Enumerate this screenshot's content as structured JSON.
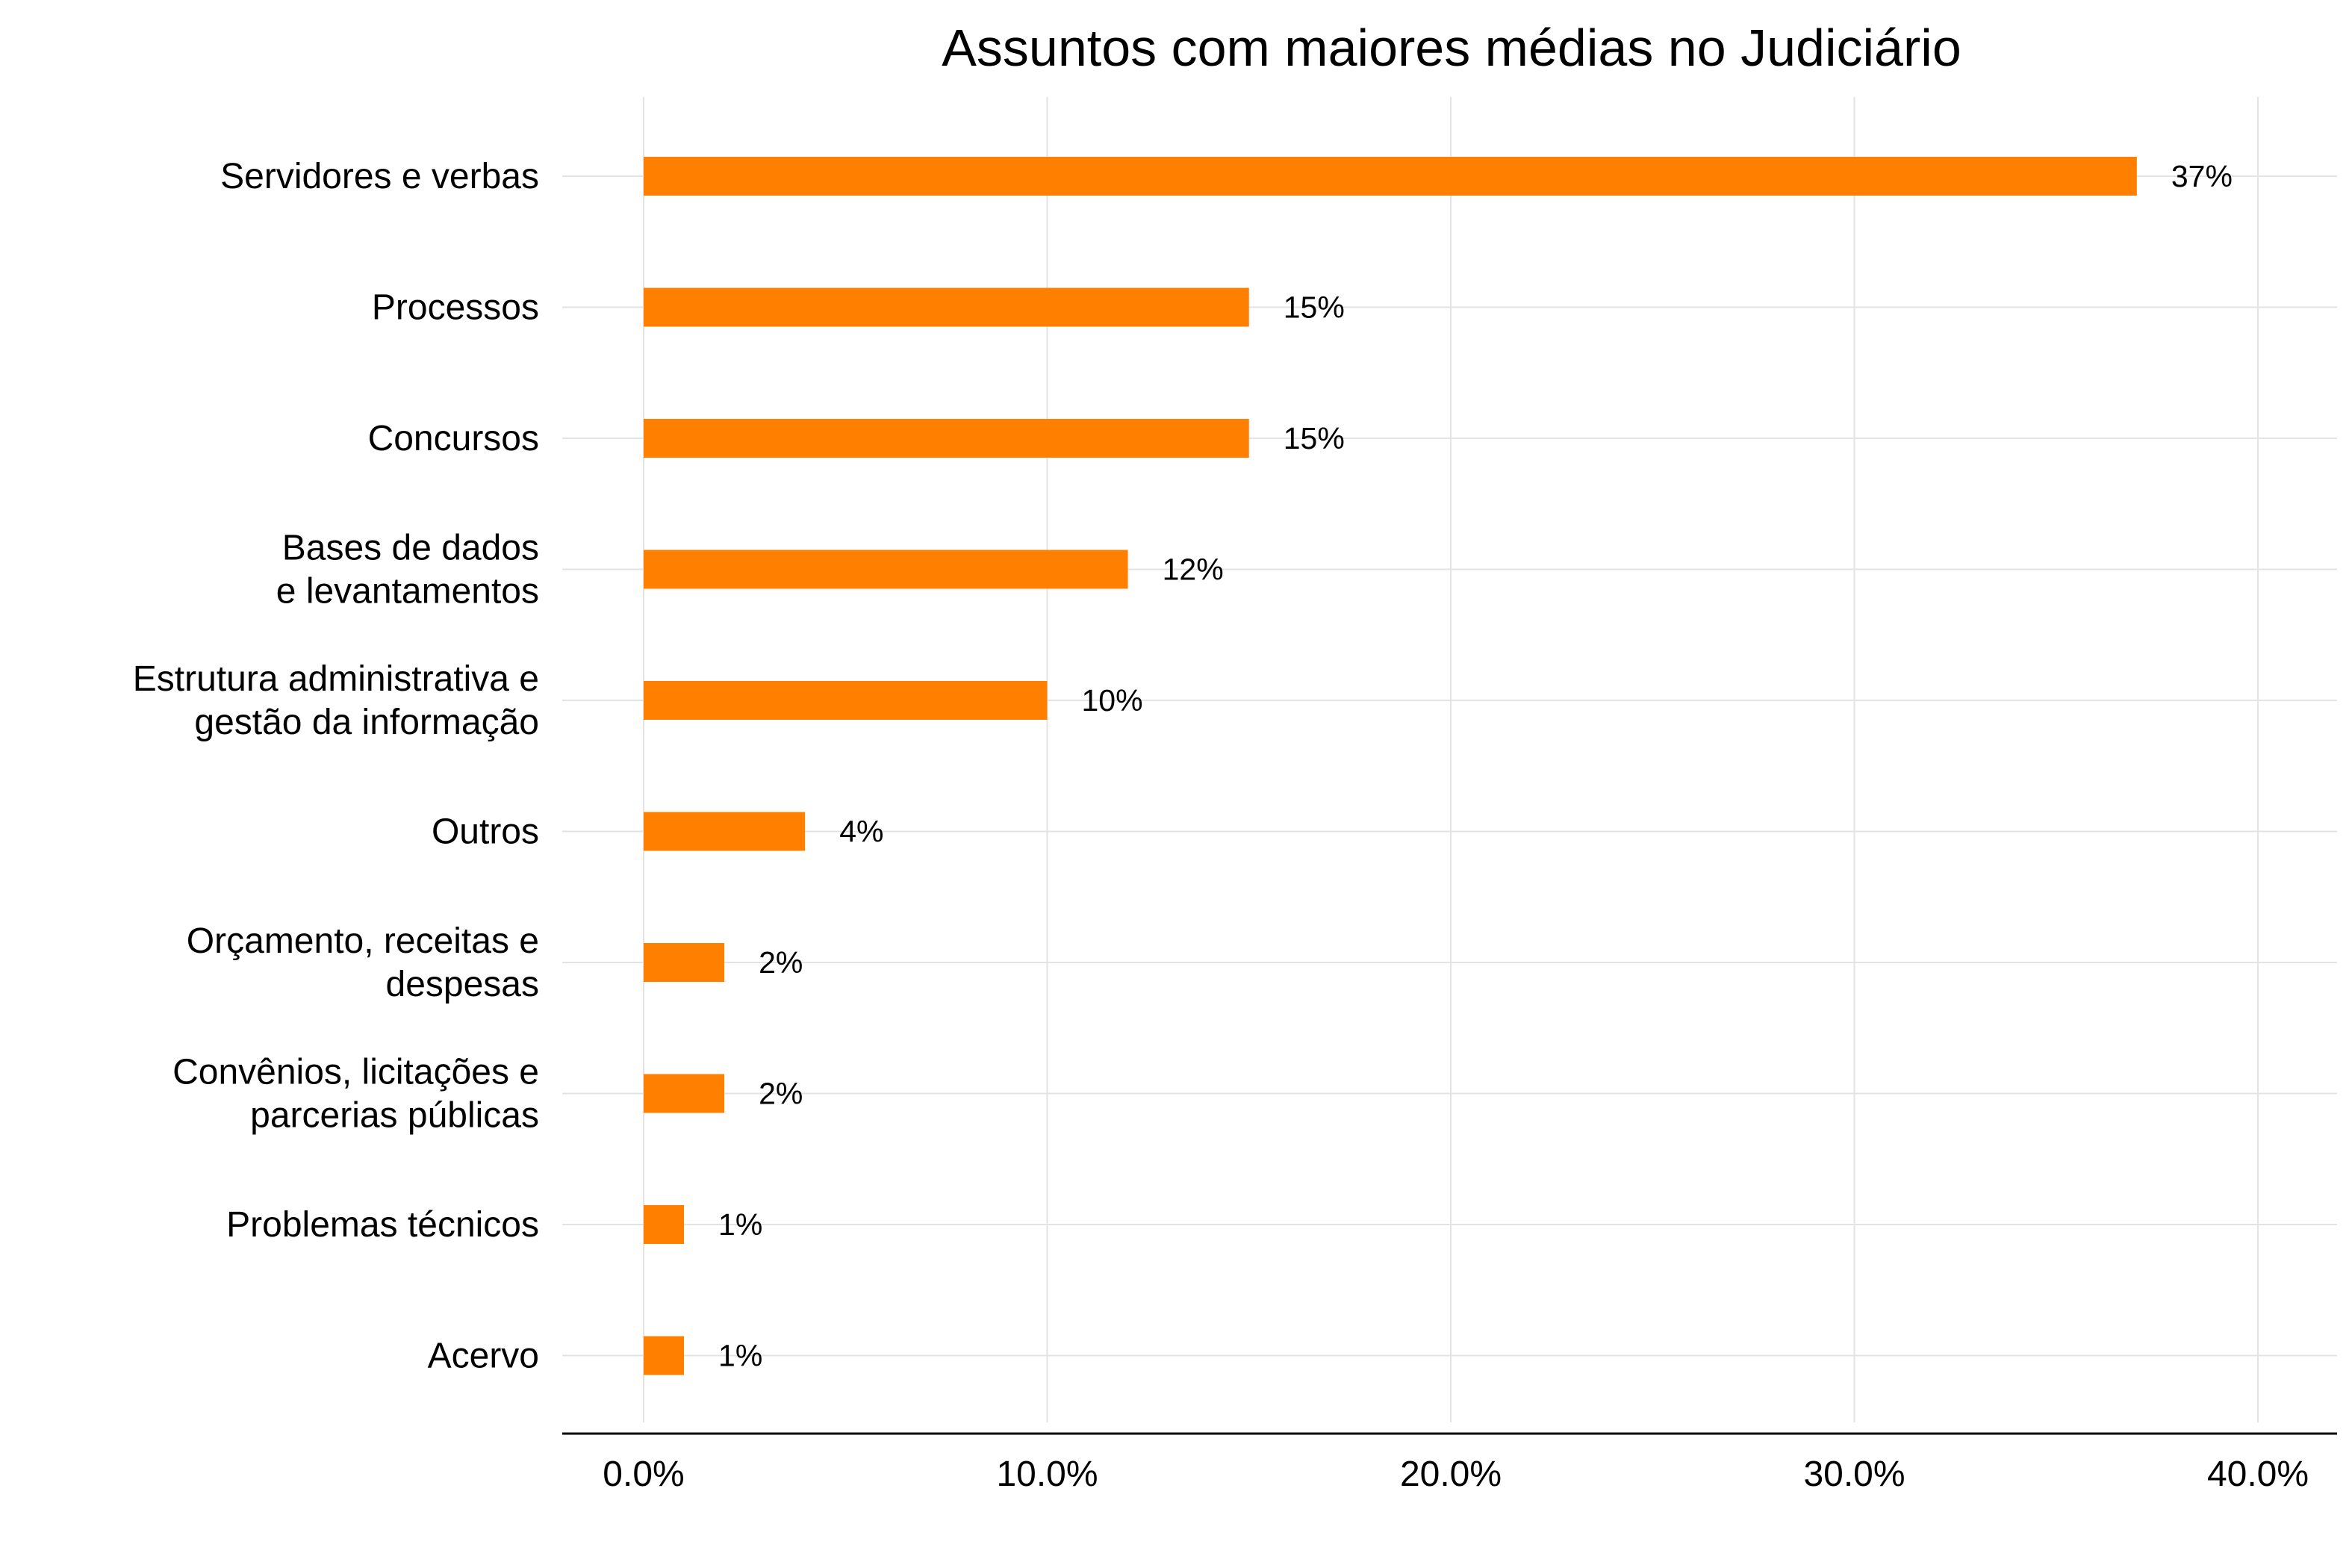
{
  "chart_data": {
    "type": "bar",
    "orientation": "horizontal",
    "title": "Assuntos com maiores médias no Judiciário",
    "xlabel": "",
    "ylabel": "",
    "categories": [
      [
        "Servidores e verbas"
      ],
      [
        "Processos"
      ],
      [
        "Concursos"
      ],
      [
        "Bases de dados",
        "e levantamentos"
      ],
      [
        "Estrutura administrativa e",
        "gestão da informação"
      ],
      [
        "Outros"
      ],
      [
        "Orçamento, receitas e",
        "despesas"
      ],
      [
        "Convênios, licitações e",
        "parcerias públicas"
      ],
      [
        "Problemas técnicos"
      ],
      [
        "Acervo"
      ]
    ],
    "values": [
      37,
      15,
      15,
      12,
      10,
      4,
      2,
      2,
      1,
      1
    ],
    "data_labels": [
      "37%",
      "15%",
      "15%",
      "12%",
      "10%",
      "4%",
      "2%",
      "2%",
      "1%",
      "1%"
    ],
    "xlim": [
      0,
      40
    ],
    "ticks": [
      0,
      10,
      20,
      30,
      40
    ],
    "tick_labels": [
      "0.0%",
      "10.0%",
      "20.0%",
      "30.0%",
      "40.0%"
    ],
    "grid": true,
    "legend": "none",
    "bar_color": "#ff8000"
  }
}
